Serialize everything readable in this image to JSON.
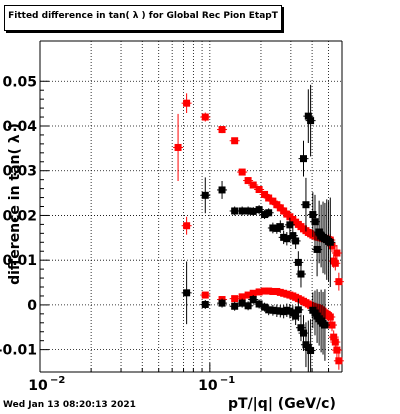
{
  "footer": {
    "timestamp": "Wed Jan 13 08:20:13 2021"
  },
  "chart_data": {
    "type": "scatter",
    "title": "Fitted difference in tan( λ ) for Global Rec Pion EtapT",
    "xlabel": "pT/|q| (GeV/c)",
    "ylabel": "difference in tan( λ )",
    "x_scale": "log",
    "xlim": [
      0.01,
      0.6
    ],
    "ylim": [
      -0.015,
      0.059
    ],
    "x_ticks": [
      {
        "value": 0.01,
        "base": "10",
        "exp": "−2"
      },
      {
        "value": 0.1,
        "base": "10",
        "exp": "−1"
      }
    ],
    "y_ticks": [
      {
        "value": -0.01,
        "label": "-0.01"
      },
      {
        "value": 0,
        "label": "0"
      },
      {
        "value": 0.01,
        "label": "0.01"
      },
      {
        "value": 0.02,
        "label": "0.02"
      },
      {
        "value": 0.03,
        "label": "0.03"
      },
      {
        "value": 0.04,
        "label": "0.04"
      },
      {
        "value": 0.05,
        "label": "0.05"
      }
    ],
    "grid": true,
    "legend": "none",
    "colors": {
      "series_a": "#ff0000",
      "series_b": "#000000"
    },
    "series": [
      {
        "color": "#ff0000",
        "points": [
          [
            0.065,
            0.0352,
            0.0075
          ],
          [
            0.073,
            0.0451,
            0.0022
          ],
          [
            0.094,
            0.042,
            0.001
          ],
          [
            0.118,
            0.0392,
            0.0008
          ],
          [
            0.14,
            0.0367,
            0.0006
          ],
          [
            0.155,
            0.0297,
            0.0006
          ],
          [
            0.168,
            0.0278,
            0.0005
          ],
          [
            0.18,
            0.0268,
            0.0005
          ],
          [
            0.195,
            0.0258,
            0.0004
          ],
          [
            0.21,
            0.0247,
            0.0004
          ],
          [
            0.222,
            0.0239,
            0.0004
          ],
          [
            0.235,
            0.0232,
            0.0004
          ],
          [
            0.248,
            0.0224,
            0.0004
          ],
          [
            0.26,
            0.0217,
            0.0004
          ],
          [
            0.272,
            0.021,
            0.0004
          ],
          [
            0.284,
            0.0203,
            0.0004
          ],
          [
            0.296,
            0.0197,
            0.0004
          ],
          [
            0.308,
            0.0191,
            0.0005
          ],
          [
            0.32,
            0.0185,
            0.0005
          ],
          [
            0.332,
            0.018,
            0.0005
          ],
          [
            0.344,
            0.0175,
            0.0005
          ],
          [
            0.356,
            0.017,
            0.0005
          ],
          [
            0.368,
            0.0166,
            0.0006
          ],
          [
            0.38,
            0.0162,
            0.0006
          ],
          [
            0.392,
            0.0159,
            0.0006
          ],
          [
            0.404,
            0.0156,
            0.0007
          ],
          [
            0.416,
            0.0154,
            0.0007
          ],
          [
            0.428,
            0.0152,
            0.0008
          ],
          [
            0.44,
            0.0151,
            0.0008
          ],
          [
            0.452,
            0.015,
            0.0009
          ],
          [
            0.464,
            0.0149,
            0.001
          ],
          [
            0.476,
            0.0148,
            0.001
          ],
          [
            0.488,
            0.0147,
            0.0011
          ],
          [
            0.5,
            0.0146,
            0.0012
          ],
          [
            0.512,
            0.0145,
            0.0013
          ],
          [
            0.524,
            0.0132,
            0.0014
          ],
          [
            0.536,
            0.0098,
            0.0015
          ],
          [
            0.548,
            0.0093,
            0.0016
          ],
          [
            0.56,
            0.0116,
            0.0018
          ],
          [
            0.575,
            0.0052,
            0.002
          ],
          [
            0.073,
            0.0177,
            0.002
          ],
          [
            0.094,
            0.0022,
            0.0007
          ],
          [
            0.118,
            0.0012,
            0.0006
          ],
          [
            0.14,
            0.0014,
            0.0005
          ],
          [
            0.155,
            0.0018,
            0.0005
          ],
          [
            0.168,
            0.0022,
            0.0005
          ],
          [
            0.18,
            0.0026,
            0.0005
          ],
          [
            0.195,
            0.0029,
            0.0004
          ],
          [
            0.21,
            0.0031,
            0.0004
          ],
          [
            0.222,
            0.0031,
            0.0004
          ],
          [
            0.235,
            0.003,
            0.0004
          ],
          [
            0.248,
            0.003,
            0.0004
          ],
          [
            0.26,
            0.0028,
            0.0004
          ],
          [
            0.272,
            0.0026,
            0.0004
          ],
          [
            0.284,
            0.0024,
            0.0004
          ],
          [
            0.296,
            0.0022,
            0.0004
          ],
          [
            0.308,
            0.002,
            0.0005
          ],
          [
            0.32,
            0.0017,
            0.0005
          ],
          [
            0.332,
            0.0014,
            0.0005
          ],
          [
            0.344,
            0.0011,
            0.0005
          ],
          [
            0.356,
            0.0008,
            0.0005
          ],
          [
            0.368,
            0.0005,
            0.0006
          ],
          [
            0.38,
            0.0002,
            0.0006
          ],
          [
            0.392,
            -0.0001,
            0.0006
          ],
          [
            0.404,
            -0.0003,
            0.0007
          ],
          [
            0.416,
            -0.0005,
            0.0007
          ],
          [
            0.428,
            -0.0006,
            0.0008
          ],
          [
            0.44,
            -0.0008,
            0.0008
          ],
          [
            0.452,
            -0.0011,
            0.0009
          ],
          [
            0.464,
            -0.0014,
            0.001
          ],
          [
            0.476,
            -0.0018,
            0.001
          ],
          [
            0.488,
            -0.0021,
            0.0011
          ],
          [
            0.5,
            -0.0024,
            0.0012
          ],
          [
            0.512,
            -0.0027,
            0.0013
          ],
          [
            0.524,
            -0.0045,
            0.0014
          ],
          [
            0.536,
            -0.0072,
            0.0015
          ],
          [
            0.548,
            -0.0083,
            0.0016
          ],
          [
            0.56,
            -0.0101,
            0.0018
          ],
          [
            0.575,
            -0.0125,
            0.002
          ]
        ]
      },
      {
        "color": "#000000",
        "points": [
          [
            0.073,
            0.0027,
            0.007
          ],
          [
            0.094,
            0.0245,
            0.004
          ],
          [
            0.118,
            0.0257,
            0.002
          ],
          [
            0.14,
            0.021,
            0.001
          ],
          [
            0.155,
            0.021,
            0.001
          ],
          [
            0.168,
            0.021,
            0.001
          ],
          [
            0.18,
            0.0209,
            0.001
          ],
          [
            0.195,
            0.0213,
            0.001
          ],
          [
            0.21,
            0.0202,
            0.001
          ],
          [
            0.222,
            0.0206,
            0.001
          ],
          [
            0.235,
            0.0172,
            0.0012
          ],
          [
            0.248,
            0.0171,
            0.0012
          ],
          [
            0.26,
            0.0175,
            0.0014
          ],
          [
            0.272,
            0.0151,
            0.0015
          ],
          [
            0.284,
            0.0148,
            0.0015
          ],
          [
            0.296,
            0.0179,
            0.0016
          ],
          [
            0.308,
            0.0155,
            0.0017
          ],
          [
            0.32,
            0.0143,
            0.0018
          ],
          [
            0.332,
            0.0095,
            0.0025
          ],
          [
            0.344,
            0.0069,
            0.003
          ],
          [
            0.356,
            0.0327,
            0.004
          ],
          [
            0.368,
            0.0224,
            0.006
          ],
          [
            0.38,
            0.0422,
            0.006
          ],
          [
            0.392,
            0.0412,
            0.008
          ],
          [
            0.404,
            0.0202,
            0.005
          ],
          [
            0.416,
            0.0186,
            0.006
          ],
          [
            0.428,
            0.0124,
            0.006
          ],
          [
            0.44,
            0.0163,
            0.007
          ],
          [
            0.452,
            0.0154,
            0.007
          ],
          [
            0.464,
            0.0151,
            0.008
          ],
          [
            0.476,
            0.0148,
            0.008
          ],
          [
            0.488,
            0.0146,
            0.009
          ],
          [
            0.5,
            0.0142,
            0.009
          ],
          [
            0.512,
            0.014,
            0.01
          ],
          [
            0.094,
            0.0001,
            0.001
          ],
          [
            0.118,
            0.0004,
            0.001
          ],
          [
            0.14,
            -0.0003,
            0.001
          ],
          [
            0.155,
            0.0004,
            0.001
          ],
          [
            0.168,
            -0.0002,
            0.001
          ],
          [
            0.18,
            0.0012,
            0.001
          ],
          [
            0.195,
            0.0002,
            0.001
          ],
          [
            0.21,
            -0.0005,
            0.001
          ],
          [
            0.222,
            -0.0011,
            0.0012
          ],
          [
            0.235,
            -0.0012,
            0.0012
          ],
          [
            0.248,
            -0.0013,
            0.0014
          ],
          [
            0.26,
            -0.0014,
            0.0014
          ],
          [
            0.272,
            -0.0015,
            0.0015
          ],
          [
            0.284,
            -0.0012,
            0.0015
          ],
          [
            0.296,
            -0.0014,
            0.0016
          ],
          [
            0.308,
            -0.0018,
            0.0017
          ],
          [
            0.32,
            -0.0025,
            0.002
          ],
          [
            0.332,
            -0.0011,
            0.0025
          ],
          [
            0.344,
            -0.0051,
            0.003
          ],
          [
            0.356,
            -0.0063,
            0.004
          ],
          [
            0.368,
            -0.0089,
            0.005
          ],
          [
            0.38,
            -0.0095,
            0.006
          ],
          [
            0.392,
            -0.0102,
            0.007
          ],
          [
            0.404,
            -0.0012,
            0.004
          ],
          [
            0.416,
            -0.0018,
            0.005
          ],
          [
            0.428,
            -0.0025,
            0.006
          ],
          [
            0.44,
            -0.0031,
            0.006
          ],
          [
            0.452,
            -0.0036,
            0.007
          ],
          [
            0.464,
            -0.0041,
            0.007
          ],
          [
            0.476,
            -0.0045,
            0.008
          ]
        ]
      }
    ]
  }
}
